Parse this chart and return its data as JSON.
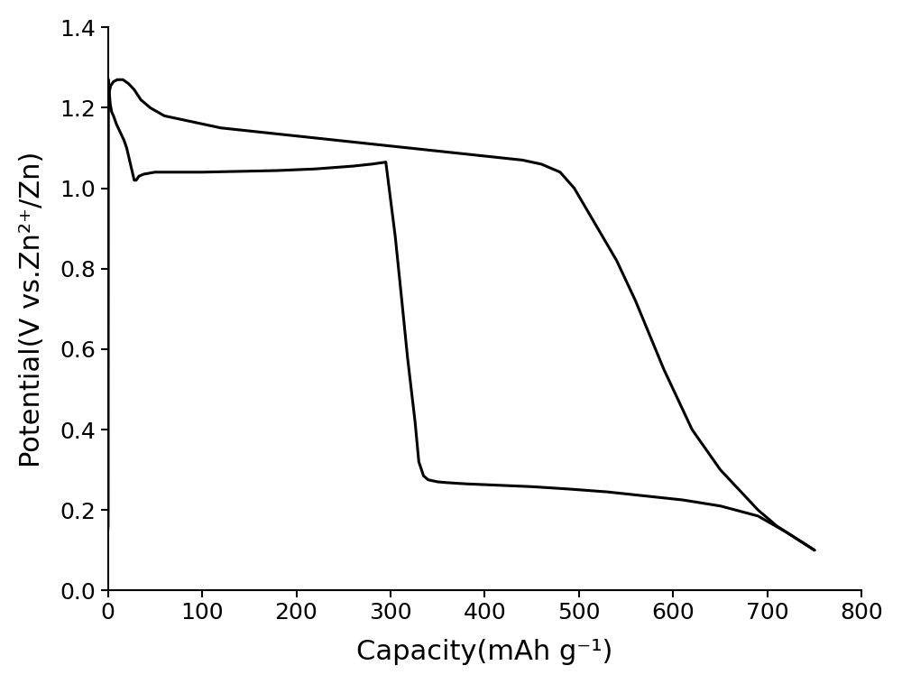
{
  "title": "",
  "xlabel": "Capacity(mAh g⁻¹)",
  "ylabel": "Potential(V vs.Zn²⁺/Zn)",
  "xlim": [
    0,
    800
  ],
  "ylim": [
    0.0,
    1.4
  ],
  "xticks": [
    0,
    100,
    200,
    300,
    400,
    500,
    600,
    700,
    800
  ],
  "yticks": [
    0.0,
    0.2,
    0.4,
    0.6,
    0.8,
    1.0,
    1.2,
    1.4
  ],
  "line_color": "#000000",
  "line_width": 2.2,
  "background_color": "#ffffff",
  "discharge_x": [
    0.0,
    0.3,
    0.6,
    1.0,
    1.5,
    2.5,
    4.0,
    6.0,
    9.0,
    13.0,
    17.0,
    20.0,
    23.0,
    26.0,
    28.0,
    30.0,
    33.0,
    38.0,
    50.0,
    70.0,
    100.0,
    140.0,
    180.0,
    220.0,
    260.0,
    280.0,
    295.0,
    305.0,
    312.0,
    318.0,
    322.0,
    326.0,
    330.0,
    335.0,
    340.0,
    350.0,
    360.0,
    380.0,
    410.0,
    450.0,
    490.0,
    530.0,
    570.0,
    610.0,
    650.0,
    690.0,
    720.0,
    750.0
  ],
  "discharge_y": [
    0.15,
    0.16,
    1.27,
    1.26,
    1.24,
    1.21,
    1.19,
    1.18,
    1.16,
    1.14,
    1.12,
    1.1,
    1.07,
    1.04,
    1.02,
    1.02,
    1.03,
    1.035,
    1.04,
    1.04,
    1.04,
    1.042,
    1.044,
    1.048,
    1.055,
    1.06,
    1.065,
    0.88,
    0.72,
    0.58,
    0.5,
    0.42,
    0.32,
    0.285,
    0.275,
    0.27,
    0.268,
    0.265,
    0.262,
    0.258,
    0.252,
    0.245,
    0.235,
    0.225,
    0.21,
    0.185,
    0.145,
    0.1
  ],
  "charge_x": [
    750.0,
    730.0,
    710.0,
    690.0,
    670.0,
    650.0,
    620.0,
    590.0,
    560.0,
    540.0,
    525.0,
    515.0,
    505.0,
    495.0,
    480.0,
    460.0,
    440.0,
    420.0,
    400.0,
    380.0,
    360.0,
    340.0,
    320.0,
    300.0,
    280.0,
    260.0,
    240.0,
    220.0,
    200.0,
    180.0,
    160.0,
    140.0,
    120.0,
    100.0,
    80.0,
    60.0,
    45.0,
    35.0,
    28.0,
    22.0,
    16.0,
    10.0,
    6.0,
    3.0,
    1.5,
    0.8,
    0.3,
    0.0
  ],
  "charge_y": [
    0.1,
    0.13,
    0.16,
    0.2,
    0.25,
    0.3,
    0.4,
    0.55,
    0.72,
    0.82,
    0.88,
    0.92,
    0.96,
    1.0,
    1.04,
    1.06,
    1.07,
    1.075,
    1.08,
    1.085,
    1.09,
    1.095,
    1.1,
    1.105,
    1.11,
    1.115,
    1.12,
    1.125,
    1.13,
    1.135,
    1.14,
    1.145,
    1.15,
    1.16,
    1.17,
    1.18,
    1.2,
    1.22,
    1.245,
    1.26,
    1.27,
    1.27,
    1.265,
    1.255,
    1.24,
    1.23,
    1.22,
    1.2
  ]
}
